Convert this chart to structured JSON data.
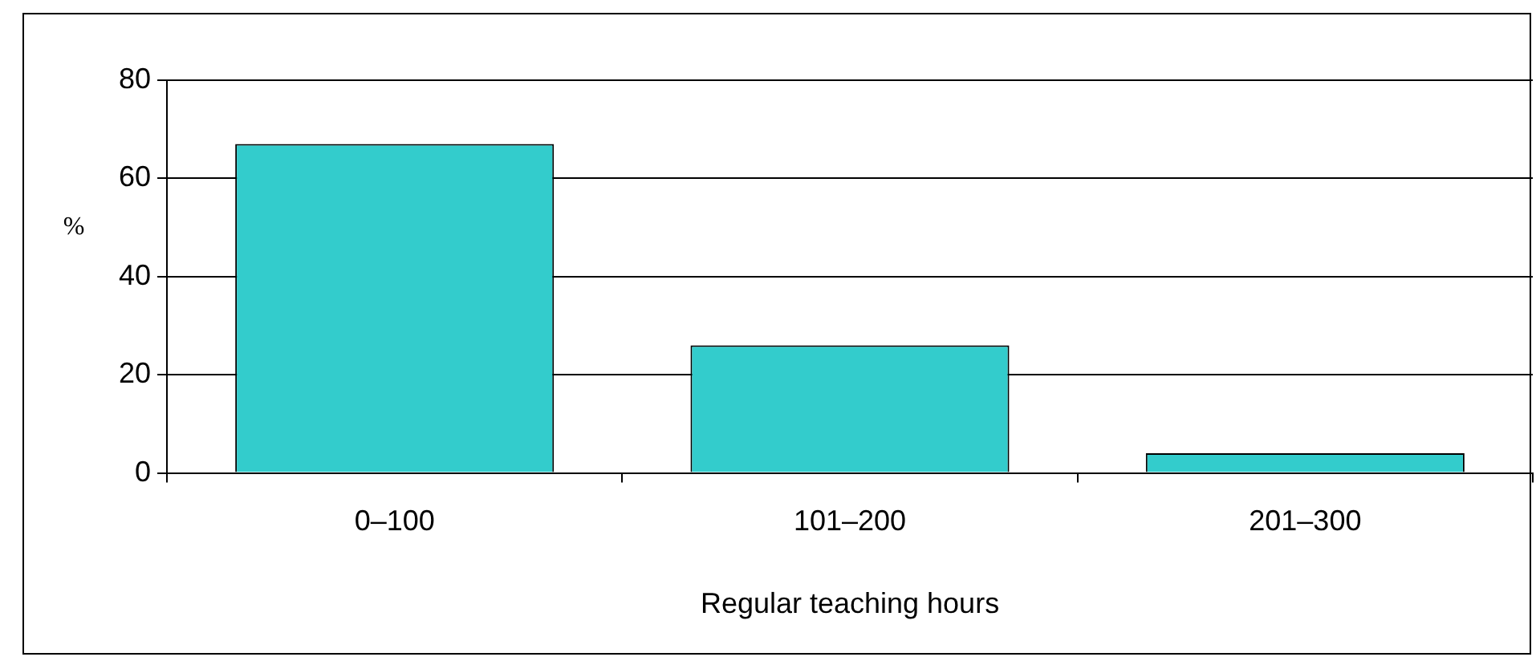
{
  "chart_data": {
    "type": "bar",
    "categories": [
      "0–100",
      "101–200",
      "201–300"
    ],
    "values": [
      67,
      26,
      4
    ],
    "color": "#33cccc",
    "ylabel": "%",
    "xlabel": "Regular teaching hours",
    "ylim": [
      0,
      80
    ],
    "yticks": [
      0,
      20,
      40,
      60,
      80
    ],
    "grid": "y",
    "legend": false
  }
}
